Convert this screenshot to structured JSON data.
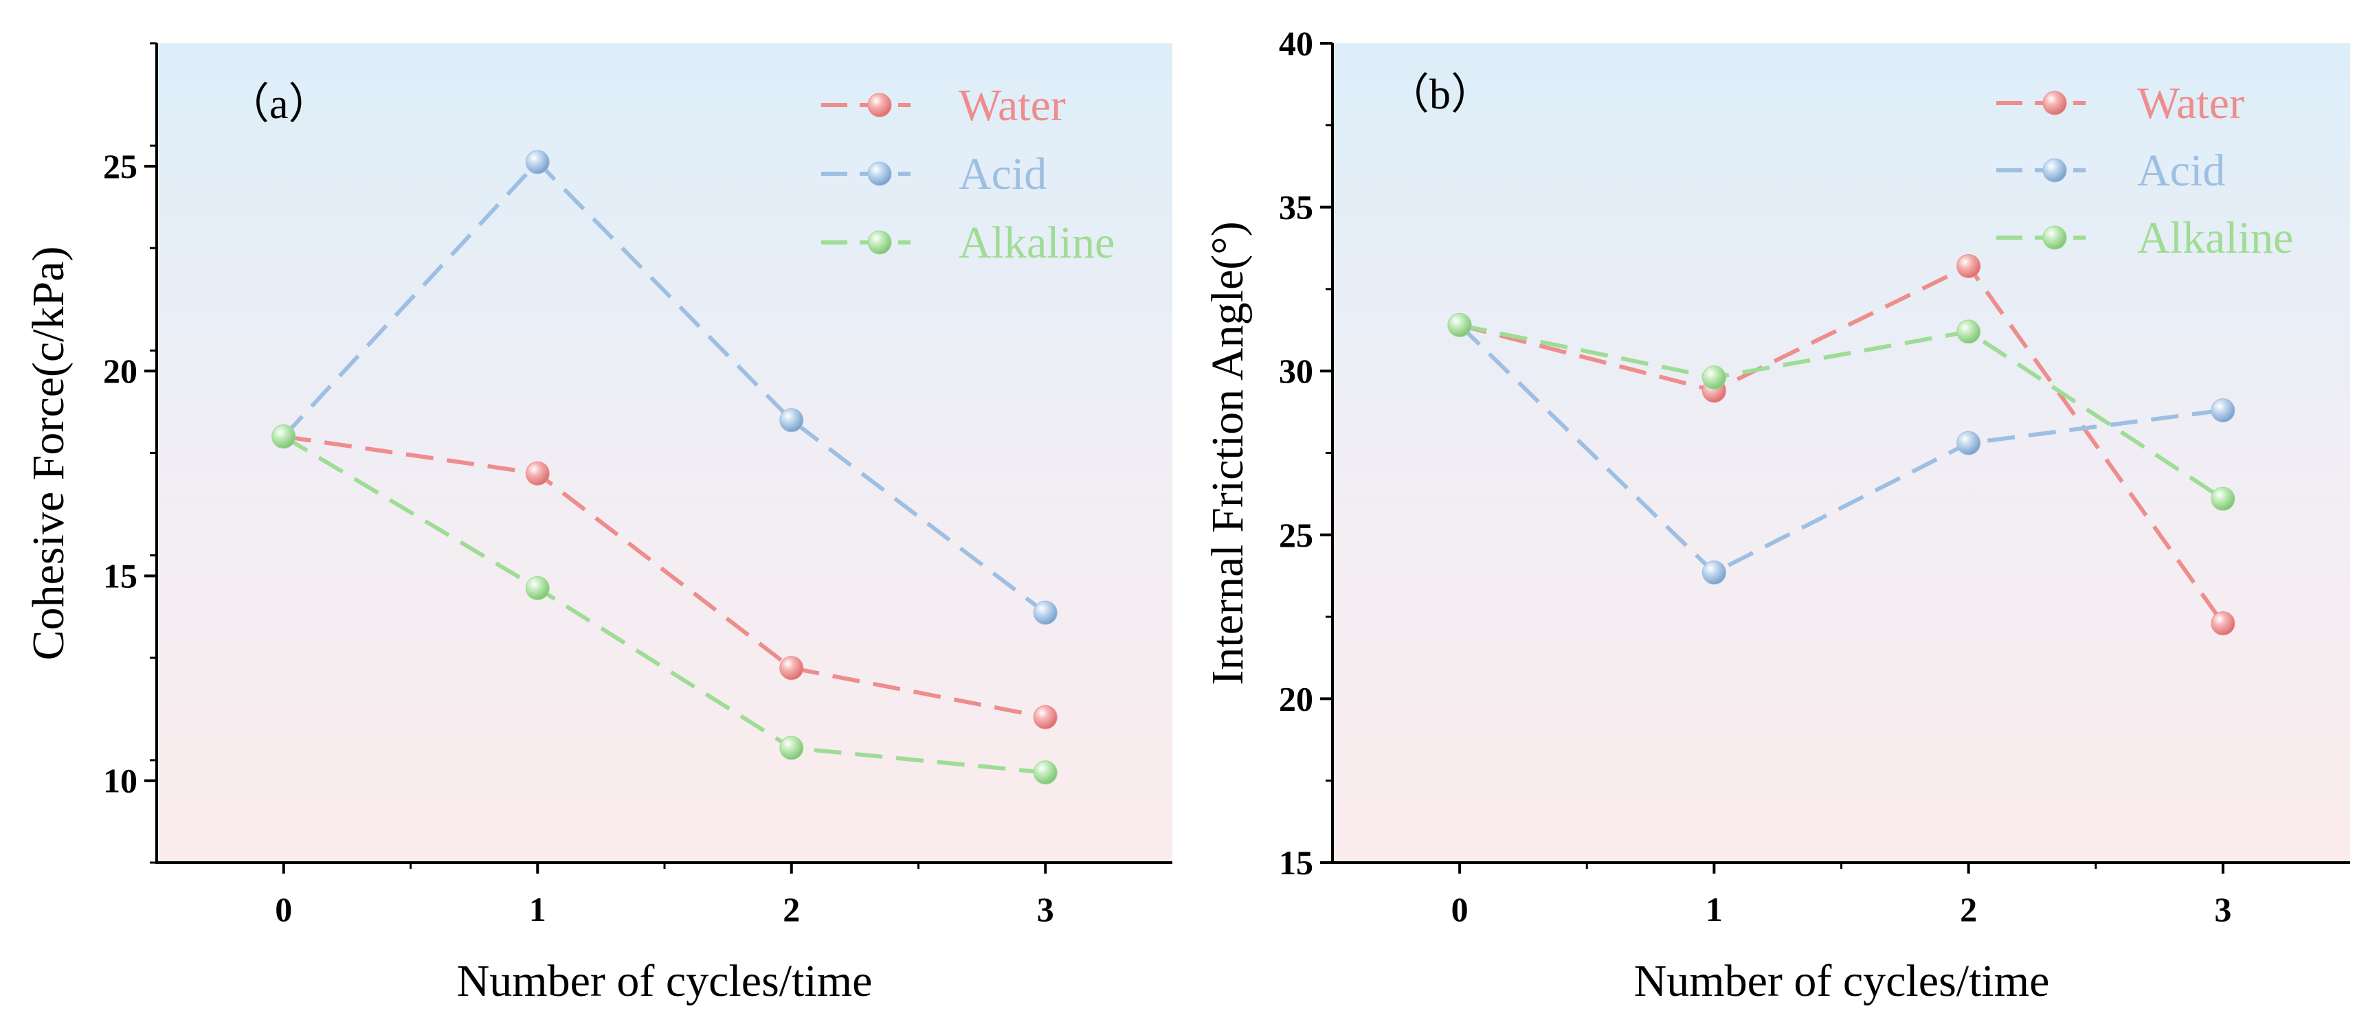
{
  "chart_data": [
    {
      "type": "line",
      "panel_label": "（a）",
      "xlabel": "Number of cycles/time",
      "ylabel": "Cohesive Force(c/kPa)",
      "x": [
        0,
        1,
        2,
        3
      ],
      "xticks": [
        "0",
        "1",
        "2",
        "3"
      ],
      "xlim": [
        -0.5,
        3.5
      ],
      "ylim": [
        8,
        28
      ],
      "yticks": [
        "10",
        "15",
        "20",
        "25"
      ],
      "ytick_values": [
        10,
        15,
        20,
        25
      ],
      "legend_position": "top-right",
      "series": [
        {
          "name": "Water",
          "color": "#ef8c8c",
          "values": [
            18.4,
            17.5,
            12.75,
            11.55
          ]
        },
        {
          "name": "Acid",
          "color": "#9dbfe3",
          "values": [
            18.4,
            25.1,
            18.8,
            14.1
          ]
        },
        {
          "name": "Alkaline",
          "color": "#9fdc95",
          "values": [
            18.4,
            14.7,
            10.8,
            10.2
          ]
        }
      ]
    },
    {
      "type": "line",
      "panel_label": "（b）",
      "xlabel": "Number of cycles/time",
      "ylabel": "Internal Friction Angle(°)",
      "x": [
        0,
        1,
        2,
        3
      ],
      "xticks": [
        "0",
        "1",
        "2",
        "3"
      ],
      "xlim": [
        -0.5,
        3.5
      ],
      "ylim": [
        15,
        40
      ],
      "yticks": [
        "15",
        "20",
        "25",
        "30",
        "35",
        "40"
      ],
      "ytick_values": [
        15,
        20,
        25,
        30,
        35,
        40
      ],
      "legend_position": "top-right",
      "series": [
        {
          "name": "Water",
          "color": "#ef8c8c",
          "values": [
            31.4,
            29.4,
            33.2,
            22.3
          ]
        },
        {
          "name": "Acid",
          "color": "#9dbfe3",
          "values": [
            31.4,
            23.85,
            27.8,
            28.8
          ]
        },
        {
          "name": "Alkaline",
          "color": "#9fdc95",
          "values": [
            31.4,
            29.8,
            31.2,
            26.1
          ]
        }
      ]
    }
  ]
}
